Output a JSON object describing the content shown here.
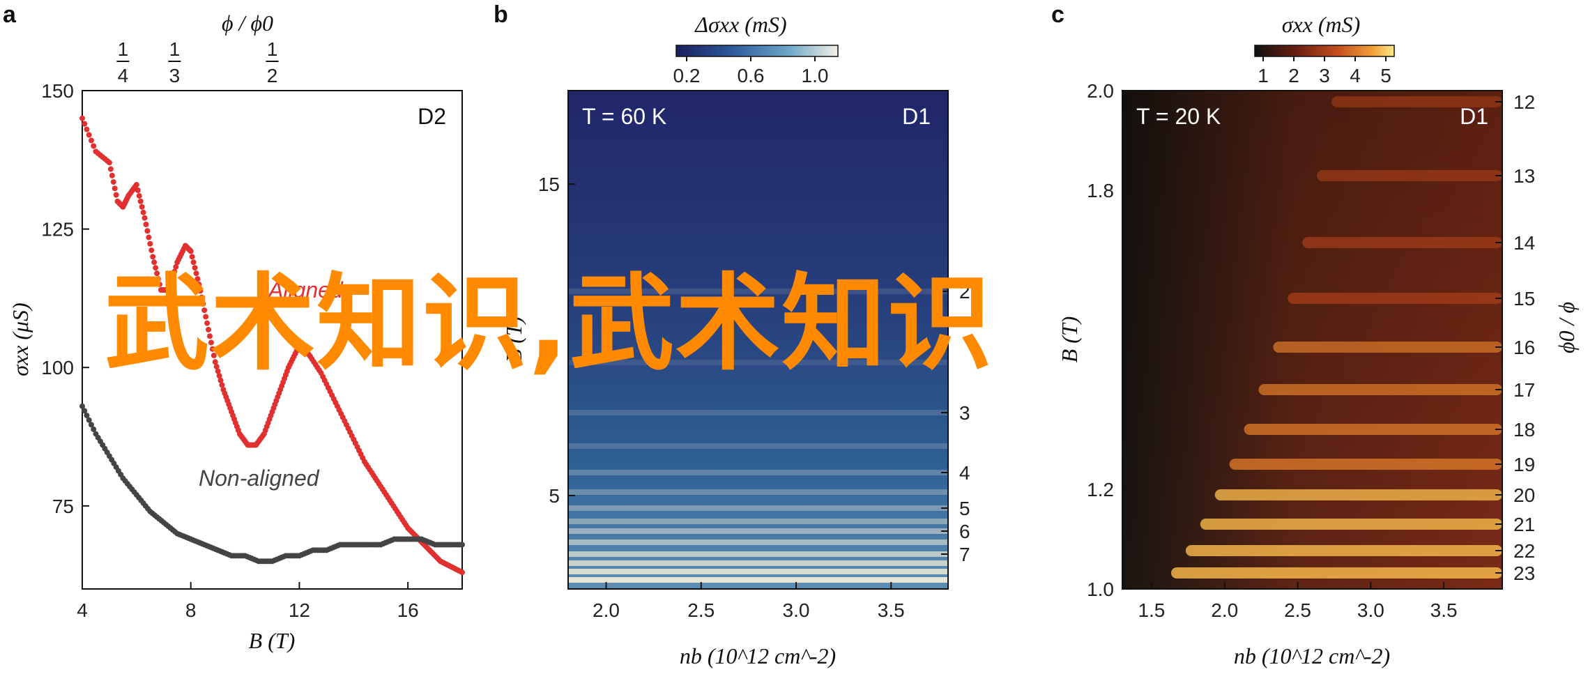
{
  "watermark": "武术知识,武术知识",
  "chart_data": [
    {
      "id": "a",
      "type": "scatter",
      "panel_letter": "a",
      "sample_tag": "D2",
      "xlabel": "B (T)",
      "ylabel": "σxx (μS)",
      "top_axis_label": "ϕ / ϕ0",
      "top_ticks": [
        {
          "num": "1",
          "den": "4",
          "x": 5.5
        },
        {
          "num": "1",
          "den": "3",
          "x": 7.4
        },
        {
          "num": "1",
          "den": "2",
          "x": 11.0
        }
      ],
      "xlim": [
        4,
        18
      ],
      "ylim": [
        60,
        150
      ],
      "xticks": [
        4,
        8,
        12,
        16
      ],
      "yticks": [
        75,
        100,
        125,
        150
      ],
      "series": [
        {
          "name": "Aligned",
          "color": "#e03030",
          "points": [
            [
              4.0,
              145
            ],
            [
              4.5,
              139
            ],
            [
              5.0,
              137
            ],
            [
              5.3,
              130
            ],
            [
              5.5,
              129
            ],
            [
              5.7,
              131
            ],
            [
              6.0,
              133
            ],
            [
              6.3,
              127
            ],
            [
              6.6,
              120
            ],
            [
              6.9,
              114
            ],
            [
              7.2,
              114
            ],
            [
              7.5,
              119
            ],
            [
              7.8,
              122
            ],
            [
              8.0,
              121
            ],
            [
              8.3,
              115
            ],
            [
              8.6,
              108
            ],
            [
              8.9,
              101
            ],
            [
              9.2,
              96
            ],
            [
              9.5,
              92
            ],
            [
              9.8,
              88
            ],
            [
              10.1,
              86
            ],
            [
              10.4,
              86
            ],
            [
              10.7,
              88
            ],
            [
              11.0,
              92
            ],
            [
              11.3,
              96
            ],
            [
              11.6,
              100
            ],
            [
              11.9,
              103
            ],
            [
              12.1,
              104
            ],
            [
              12.4,
              102
            ],
            [
              12.8,
              99
            ],
            [
              13.2,
              95
            ],
            [
              13.6,
              91
            ],
            [
              14.0,
              87
            ],
            [
              14.4,
              83
            ],
            [
              14.8,
              80
            ],
            [
              15.2,
              77
            ],
            [
              15.6,
              74
            ],
            [
              16.0,
              71
            ],
            [
              16.4,
              69
            ],
            [
              16.8,
              67
            ],
            [
              17.2,
              65
            ],
            [
              17.6,
              64
            ],
            [
              18.0,
              63
            ]
          ]
        },
        {
          "name": "Non-aligned",
          "color": "#444444",
          "points": [
            [
              4.0,
              93
            ],
            [
              4.5,
              88
            ],
            [
              5.0,
              84
            ],
            [
              5.5,
              80
            ],
            [
              6.0,
              77
            ],
            [
              6.5,
              74
            ],
            [
              7.0,
              72
            ],
            [
              7.5,
              70
            ],
            [
              8.0,
              69
            ],
            [
              8.5,
              68
            ],
            [
              9.0,
              67
            ],
            [
              9.5,
              66
            ],
            [
              10.0,
              66
            ],
            [
              10.5,
              65
            ],
            [
              11.0,
              65
            ],
            [
              11.5,
              66
            ],
            [
              12.0,
              66
            ],
            [
              12.5,
              67
            ],
            [
              13.0,
              67
            ],
            [
              13.5,
              68
            ],
            [
              14.0,
              68
            ],
            [
              14.5,
              68
            ],
            [
              15.0,
              68
            ],
            [
              15.5,
              69
            ],
            [
              16.0,
              69
            ],
            [
              16.5,
              69
            ],
            [
              17.0,
              68
            ],
            [
              17.5,
              68
            ],
            [
              18.0,
              68
            ]
          ]
        }
      ]
    },
    {
      "id": "b",
      "type": "heatmap",
      "panel_letter": "b",
      "temperature_label": "T = 60 K",
      "sample_tag": "D1",
      "colorbar_label": "Δσxx (mS)",
      "colorbar_ticks": [
        "0.2",
        "0.6",
        "1.0"
      ],
      "colorbar_stops": [
        "#1a1f5e",
        "#2e5a9c",
        "#6fa8c8",
        "#f4f0e6"
      ],
      "xlabel": "nb (10^12 cm^-2)",
      "ylabel": "B (T)",
      "xlim": [
        1.8,
        3.8
      ],
      "ylim": [
        2,
        18
      ],
      "xticks": [
        "2.0",
        "2.5",
        "3.0",
        "3.5"
      ],
      "yticks": [
        "5",
        "15"
      ],
      "right_ticks": [
        "2",
        "3",
        "4",
        "5",
        "6",
        "7"
      ]
    },
    {
      "id": "c",
      "type": "heatmap",
      "panel_letter": "c",
      "temperature_label": "T = 20 K",
      "sample_tag": "D1",
      "colorbar_label": "σxx (mS)",
      "colorbar_ticks": [
        "1",
        "2",
        "3",
        "4",
        "5"
      ],
      "colorbar_stops": [
        "#111111",
        "#6a1f10",
        "#c5501f",
        "#f2a23a",
        "#ffe98a"
      ],
      "xlabel": "nb (10^12 cm^-2)",
      "ylabel": "B (T)",
      "right_axis_label": "ϕ0 / ϕ",
      "xlim": [
        1.3,
        3.9
      ],
      "ylim": [
        1.0,
        2.0
      ],
      "xticks": [
        "1.5",
        "2.0",
        "2.5",
        "3.0",
        "3.5"
      ],
      "yticks": [
        "1.0",
        "1.2",
        "1.8",
        "2.0"
      ],
      "right_ticks": [
        "12",
        "13",
        "14",
        "15",
        "16",
        "17",
        "18",
        "19",
        "20",
        "21",
        "22",
        "23"
      ]
    }
  ]
}
